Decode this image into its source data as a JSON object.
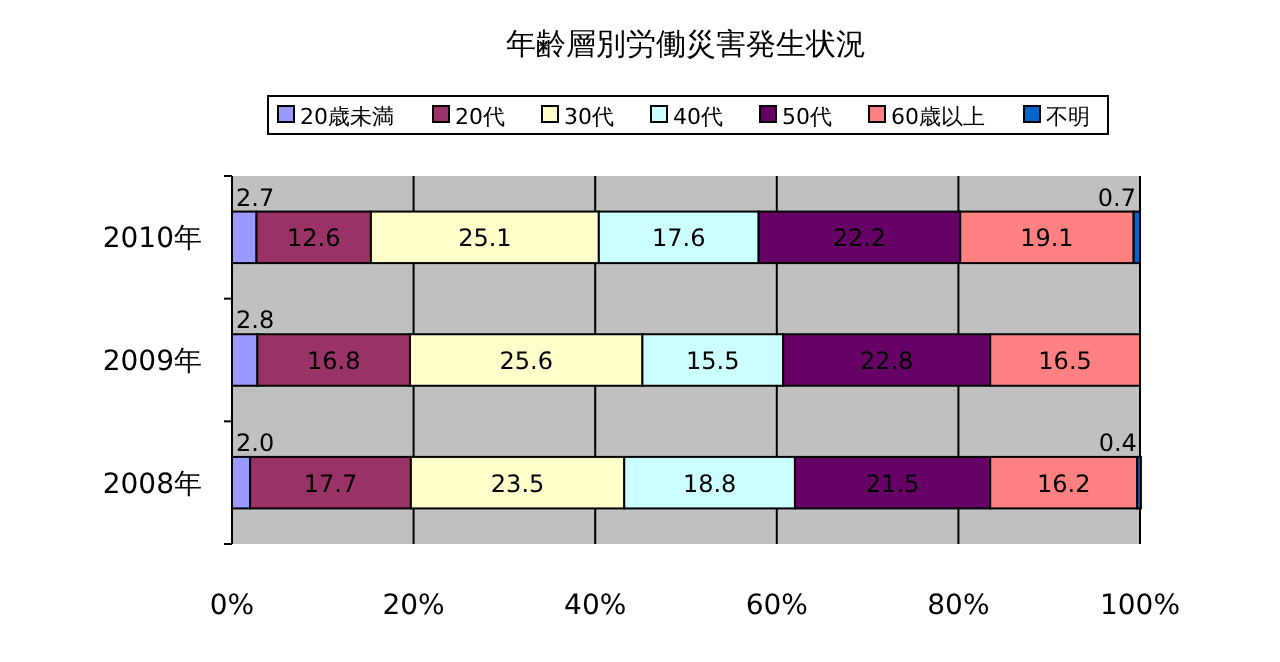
{
  "chart_data": {
    "type": "bar",
    "orientation": "horizontal",
    "stacked": true,
    "title": "年齢層別労働災害発生状況",
    "categories": [
      "2010年",
      "2009年",
      "2008年"
    ],
    "series": [
      {
        "name": "20歳未満",
        "color": "#9999ff",
        "values": [
          2.7,
          2.8,
          2.0
        ],
        "value_labels": [
          "2.7",
          "2.8",
          "2.0"
        ]
      },
      {
        "name": "20代",
        "color": "#993366",
        "values": [
          12.6,
          16.8,
          17.7
        ],
        "value_labels": [
          "12.6",
          "16.8",
          "17.7"
        ]
      },
      {
        "name": "30代",
        "color": "#ffffcc",
        "values": [
          25.1,
          25.6,
          23.5
        ],
        "value_labels": [
          "25.1",
          "25.6",
          "23.5"
        ]
      },
      {
        "name": "40代",
        "color": "#ccffff",
        "values": [
          17.6,
          15.5,
          18.8
        ],
        "value_labels": [
          "17.6",
          "15.5",
          "18.8"
        ]
      },
      {
        "name": "50代",
        "color": "#660066",
        "values": [
          22.2,
          22.8,
          21.5
        ],
        "value_labels": [
          "22.2",
          "22.8",
          "21.5"
        ]
      },
      {
        "name": "60歳以上",
        "color": "#ff8080",
        "values": [
          19.1,
          16.5,
          16.2
        ],
        "value_labels": [
          "19.1",
          "16.5",
          "16.2"
        ]
      },
      {
        "name": "不明",
        "color": "#0066cc",
        "values": [
          0.7,
          null,
          0.4
        ],
        "value_labels": [
          "0.7",
          null,
          "0.4"
        ]
      }
    ],
    "xlim": [
      0,
      100
    ],
    "xticks": [
      {
        "value": 0,
        "label": "0%"
      },
      {
        "value": 20,
        "label": "20%"
      },
      {
        "value": 40,
        "label": "40%"
      },
      {
        "value": 60,
        "label": "60%"
      },
      {
        "value": 80,
        "label": "80%"
      },
      {
        "value": 100,
        "label": "100%"
      }
    ],
    "grid": "x",
    "legend": "top"
  }
}
